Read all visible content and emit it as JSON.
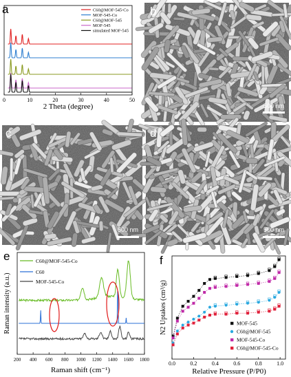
{
  "panels": {
    "a": {
      "label": "a",
      "xlabel": "2 Theta (degree)",
      "legend": [
        "C60@MOF-545-Co",
        "MOF-545-Co",
        "C60@MOF-545",
        "MOF-545",
        "simulated MOF-545"
      ],
      "colors": [
        "#e02020",
        "#2f7fd0",
        "#8a9a20",
        "#c866c8",
        "#111111"
      ]
    },
    "b": {
      "label": "b",
      "scalebar": "500 nm"
    },
    "c": {
      "label": "c",
      "scalebar": "500 nm"
    },
    "d": {
      "label": "d",
      "scalebar": "500 nm"
    },
    "e": {
      "label": "e",
      "xlabel": "Raman shift (cm⁻¹)",
      "ylabel": "Raman intensity (a.u.)",
      "legend": [
        "C60@MOF-545-Co",
        "C60",
        "MOF-545-Co"
      ],
      "colors": [
        "#66bb22",
        "#2a6fd6",
        "#444444"
      ]
    },
    "f": {
      "label": "f",
      "xlabel": "Relative Pressure (P/P0)",
      "ylabel": "N2 Uptakes (cm³/g)",
      "legend": [
        "MOF-545",
        "C60@MOF-545",
        "MOF-545-Co",
        "C60@MOF-545-Co"
      ],
      "colors": [
        "#111111",
        "#29a8df",
        "#c02aa8",
        "#e0203a"
      ]
    }
  },
  "chart_data": [
    {
      "panel": "a",
      "type": "line",
      "xlabel": "2 Theta (degree)",
      "xlim": [
        0,
        50
      ],
      "xticks": [
        0,
        10,
        20,
        30,
        40,
        50
      ],
      "series": [
        {
          "name": "C60@MOF-545-Co",
          "peaks": [
            2.6,
            4.6,
            7.1,
            9.5
          ]
        },
        {
          "name": "MOF-545-Co",
          "peaks": [
            2.6,
            4.6,
            7.1,
            9.5
          ]
        },
        {
          "name": "C60@MOF-545",
          "peaks": [
            2.6,
            4.6,
            7.1,
            9.5
          ]
        },
        {
          "name": "MOF-545",
          "peaks": [
            2.6,
            4.6,
            7.1,
            9.5
          ]
        },
        {
          "name": "simulated MOF-545",
          "peaks": [
            2.6,
            4.6,
            7.1,
            9.5
          ]
        }
      ]
    },
    {
      "panel": "e",
      "type": "line",
      "xlabel": "Raman shift (cm⁻¹)",
      "ylabel": "Raman intensity (a.u.)",
      "xlim": [
        200,
        1800
      ],
      "xticks": [
        200,
        400,
        600,
        800,
        1000,
        1200,
        1400,
        1600,
        1800
      ],
      "series": [
        {
          "name": "C60@MOF-545-Co",
          "peaks": [
            1020,
            1260,
            1465,
            1600
          ]
        },
        {
          "name": "C60",
          "peaks": [
            270,
            495,
            1465,
            1570
          ]
        },
        {
          "name": "MOF-545-Co",
          "peaks": [
            1050,
            1250,
            1370,
            1490,
            1600
          ]
        }
      ],
      "annotations": [
        "red ellipse near 780",
        "red ellipse near 1470"
      ]
    },
    {
      "panel": "f",
      "type": "scatter",
      "xlabel": "Relative Pressure (P/P0)",
      "ylabel": "N2 Uptakes (cm³/g)",
      "xlim": [
        0,
        1.05
      ],
      "xticks": [
        0.0,
        0.2,
        0.4,
        0.6,
        0.8,
        1.0
      ],
      "series": [
        {
          "name": "MOF-545",
          "x": [
            0.01,
            0.05,
            0.1,
            0.15,
            0.2,
            0.25,
            0.3,
            0.35,
            0.4,
            0.5,
            0.6,
            0.7,
            0.8,
            0.9,
            0.95,
            0.99
          ],
          "y": [
            0.22,
            0.4,
            0.52,
            0.57,
            0.62,
            0.68,
            0.75,
            0.79,
            0.8,
            0.81,
            0.82,
            0.83,
            0.85,
            0.88,
            0.92,
            0.99
          ]
        },
        {
          "name": "C60@MOF-545",
          "x": [
            0.01,
            0.05,
            0.1,
            0.15,
            0.2,
            0.25,
            0.3,
            0.35,
            0.4,
            0.5,
            0.6,
            0.7,
            0.8,
            0.9,
            0.95,
            0.99
          ],
          "y": [
            0.15,
            0.27,
            0.33,
            0.36,
            0.39,
            0.42,
            0.46,
            0.51,
            0.52,
            0.53,
            0.54,
            0.55,
            0.56,
            0.58,
            0.61,
            0.66
          ]
        },
        {
          "name": "MOF-545-Co",
          "x": [
            0.01,
            0.05,
            0.1,
            0.15,
            0.2,
            0.25,
            0.3,
            0.35,
            0.4,
            0.5,
            0.6,
            0.7,
            0.8,
            0.9,
            0.95,
            0.99
          ],
          "y": [
            0.2,
            0.37,
            0.47,
            0.51,
            0.55,
            0.6,
            0.66,
            0.7,
            0.71,
            0.72,
            0.73,
            0.74,
            0.75,
            0.77,
            0.8,
            0.86
          ]
        },
        {
          "name": "C60@MOF-545-Co",
          "x": [
            0.01,
            0.05,
            0.1,
            0.15,
            0.2,
            0.25,
            0.3,
            0.35,
            0.4,
            0.5,
            0.6,
            0.7,
            0.8,
            0.9,
            0.95,
            0.99
          ],
          "y": [
            0.13,
            0.24,
            0.3,
            0.33,
            0.35,
            0.38,
            0.41,
            0.43,
            0.44,
            0.44,
            0.45,
            0.45,
            0.46,
            0.47,
            0.49,
            0.52
          ]
        }
      ]
    }
  ]
}
